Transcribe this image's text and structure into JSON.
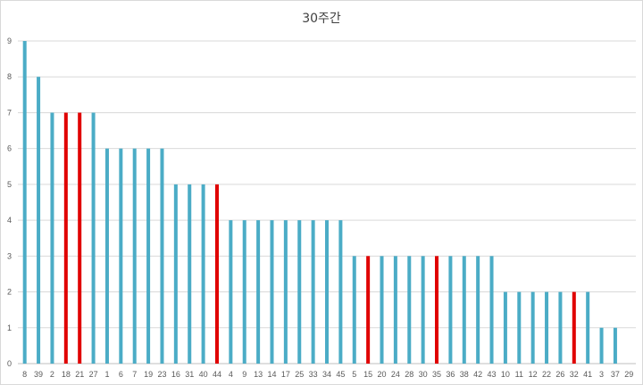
{
  "chart_data": {
    "type": "bar",
    "title": "30주간",
    "xlabel": "",
    "ylabel": "",
    "ylim": [
      0,
      9
    ],
    "yticks": [
      0,
      1,
      2,
      3,
      4,
      5,
      6,
      7,
      8,
      9
    ],
    "grid": true,
    "legend": "none",
    "categories": [
      "8",
      "39",
      "2",
      "18",
      "21",
      "27",
      "1",
      "6",
      "7",
      "19",
      "23",
      "16",
      "31",
      "40",
      "44",
      "4",
      "9",
      "13",
      "14",
      "17",
      "25",
      "33",
      "34",
      "45",
      "5",
      "15",
      "20",
      "24",
      "28",
      "30",
      "35",
      "36",
      "38",
      "42",
      "43",
      "10",
      "11",
      "12",
      "22",
      "26",
      "32",
      "41",
      "3",
      "37",
      "29"
    ],
    "values": [
      9,
      8,
      7,
      7,
      7,
      7,
      6,
      6,
      6,
      6,
      6,
      5,
      5,
      5,
      5,
      4,
      4,
      4,
      4,
      4,
      4,
      4,
      4,
      4,
      3,
      3,
      3,
      3,
      3,
      3,
      3,
      3,
      3,
      3,
      3,
      2,
      2,
      2,
      2,
      2,
      2,
      2,
      1,
      1,
      0
    ],
    "highlighted": [
      "18",
      "21",
      "44",
      "15",
      "35",
      "32"
    ],
    "colors": {
      "bar": "#4bacc6",
      "highlight": "#e00000",
      "grid": "#d9d9d9",
      "axis": "#bfbfbf"
    }
  }
}
